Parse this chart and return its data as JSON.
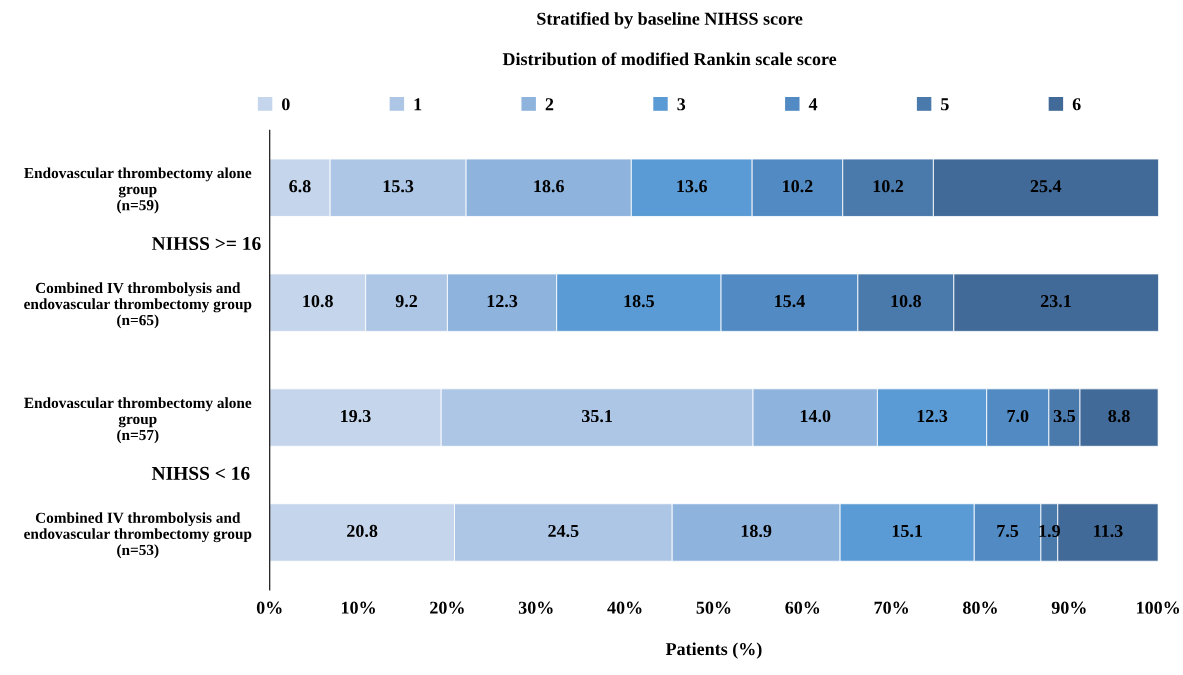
{
  "chart_data": {
    "type": "bar",
    "orientation": "horizontal",
    "stacked": true,
    "title": "Stratified by baseline NIHSS score",
    "subtitle": "Distribution of modified Rankin scale score",
    "xlabel": "Patients (%)",
    "categories": [
      "Endovascular thrombectomy alone\ngroup\n(n=59)",
      "Combined IV thrombolysis and\nendovascular thrombectomy group\n(n=65)",
      "Endovascular thrombectomy alone\ngroup\n(n=57)",
      "Combined IV thrombolysis and\nendovascular thrombectomy group\n(n=53)"
    ],
    "series": [
      {
        "name": "0",
        "color": "#c5d6ec",
        "values": [
          6.8,
          10.8,
          19.3,
          20.8
        ]
      },
      {
        "name": "1",
        "color": "#adc6e5",
        "values": [
          15.3,
          9.2,
          35.1,
          24.5
        ]
      },
      {
        "name": "2",
        "color": "#8eb4de",
        "values": [
          18.6,
          12.3,
          14.0,
          18.9
        ],
        "value_labels": [
          "18.6",
          "12.3",
          "14.0",
          "18.9"
        ]
      },
      {
        "name": "3",
        "color": "#5b9bd5",
        "values": [
          13.6,
          18.5,
          12.3,
          15.1
        ]
      },
      {
        "name": "4",
        "color": "#528bc3",
        "values": [
          10.2,
          15.4,
          7.0,
          7.5
        ],
        "value_labels": [
          "10.2",
          "15.4",
          "7.0",
          "7.5"
        ]
      },
      {
        "name": "5",
        "color": "#4a79ab",
        "values": [
          10.2,
          10.8,
          3.5,
          1.9
        ]
      },
      {
        "name": "6",
        "color": "#416a98",
        "values": [
          25.4,
          23.1,
          8.8,
          11.3
        ]
      }
    ],
    "annotations": [
      "NIHSS >= 16",
      "NIHSS < 16"
    ],
    "xlim": [
      0,
      100
    ],
    "xticks": [
      {
        "value": 0,
        "label": "0%"
      },
      {
        "value": 10,
        "label": "10%"
      },
      {
        "value": 20,
        "label": "20%"
      },
      {
        "value": 30,
        "label": "30%"
      },
      {
        "value": 40,
        "label": "40%"
      },
      {
        "value": 50,
        "label": "50%"
      },
      {
        "value": 60,
        "label": "60%"
      },
      {
        "value": 70,
        "label": "70%"
      },
      {
        "value": 80,
        "label": "80%"
      },
      {
        "value": 90,
        "label": "90%"
      },
      {
        "value": 100,
        "label": "100%"
      }
    ],
    "data_labels": true,
    "grid": false,
    "legend": "top"
  }
}
